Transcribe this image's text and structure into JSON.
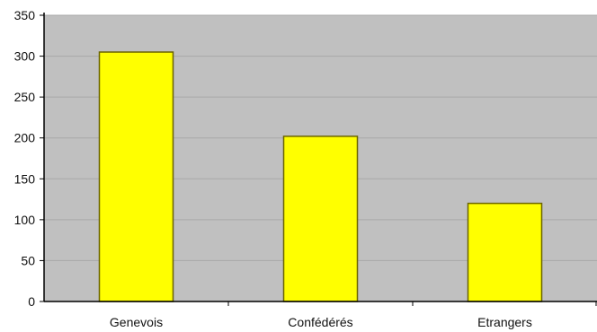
{
  "chart_data": {
    "type": "bar",
    "categories": [
      "Genevois",
      "Confédérés",
      "Etrangers"
    ],
    "values": [
      305,
      202,
      120
    ],
    "ylim": [
      0,
      350
    ],
    "yticks": [
      0,
      50,
      100,
      150,
      200,
      250,
      300,
      350
    ],
    "grid": true,
    "legend": "none",
    "title": "",
    "xlabel": "",
    "ylabel": "",
    "colors": {
      "bar_fill": "#ffff00",
      "bar_stroke": "#6b6400",
      "plot_background": "#c0c0c0",
      "grid": "#a8a8a8",
      "axis": "#000000"
    }
  }
}
